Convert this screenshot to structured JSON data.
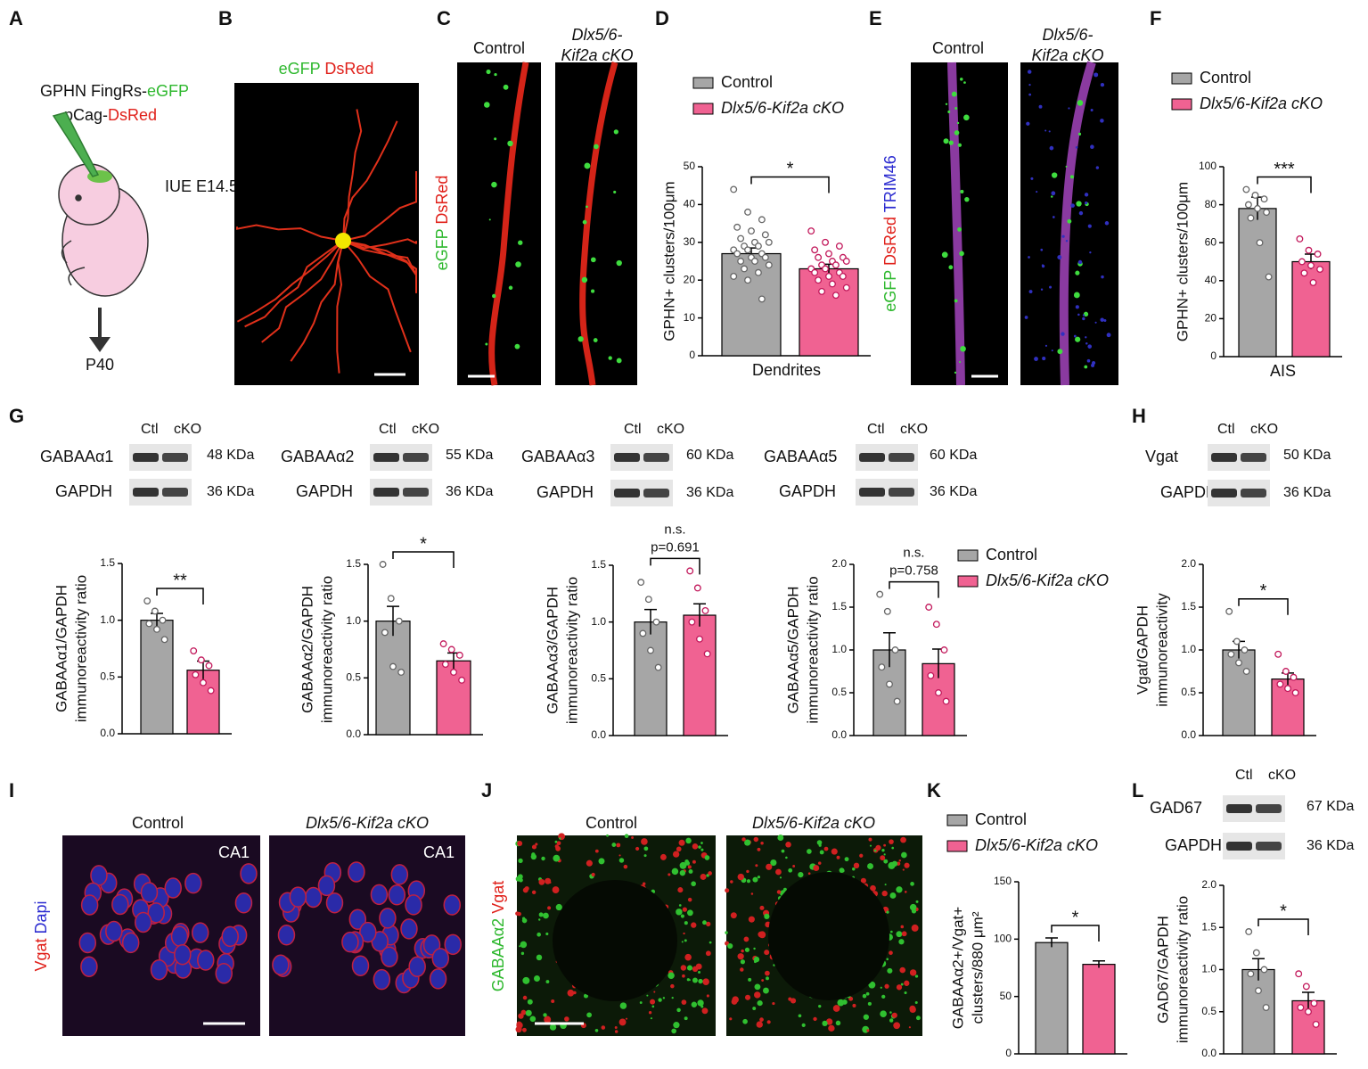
{
  "figure": {
    "letters": [
      "A",
      "B",
      "C",
      "D",
      "E",
      "F",
      "G",
      "H",
      "I",
      "J",
      "K",
      "L"
    ],
    "a": {
      "line1": [
        "GPHN FingRs-",
        "eGFP"
      ],
      "line2": [
        "pCag-",
        "DsRed"
      ],
      "iue": "IUE E14.5",
      "age": "P40"
    },
    "b": {
      "stain": [
        "eGFP",
        "DsRed"
      ]
    },
    "c": {
      "control": "Control",
      "cko": [
        "Dlx5/6-",
        "Kif2a cKO"
      ],
      "stain": [
        "eGFP",
        "DsRed"
      ]
    },
    "e": {
      "control": "Control",
      "cko": [
        "Dlx5/6-",
        "Kif2a cKO"
      ],
      "stain": [
        "eGFP",
        "DsRed",
        "TRIM46"
      ]
    },
    "blots": [
      {
        "ctl": "Ctl",
        "cko": "cKO",
        "target": "GABAAα1",
        "target_kda": "48 KDa",
        "ref": "GAPDH",
        "ref_kda": "36 KDa"
      },
      {
        "ctl": "Ctl",
        "cko": "cKO",
        "target": "GABAAα2",
        "target_kda": "55 KDa",
        "ref": "GAPDH",
        "ref_kda": "36 KDa"
      },
      {
        "ctl": "Ctl",
        "cko": "cKO",
        "target": "GABAAα3",
        "target_kda": "60 KDa",
        "ref": "GAPDH",
        "ref_kda": "36 KDa"
      },
      {
        "ctl": "Ctl",
        "cko": "cKO",
        "target": "GABAAα5",
        "target_kda": "60 KDa",
        "ref": "GAPDH",
        "ref_kda": "36 KDa"
      },
      {
        "ctl": "Ctl",
        "cko": "cKO",
        "target": "Vgat",
        "target_kda": "50 KDa",
        "ref": "GAPDH",
        "ref_kda": "36 KDa"
      },
      {
        "ctl": "Ctl",
        "cko": "cKO",
        "target": "GAD67",
        "target_kda": "67 KDa",
        "ref": "GAPDH",
        "ref_kda": "36 KDa"
      }
    ],
    "i": {
      "control": "Control",
      "cko": "Dlx5/6-Kif2a cKO",
      "region": "CA1",
      "stain": [
        "Vgat",
        "Dapi"
      ]
    },
    "j": {
      "control": "Control",
      "cko": "Dlx5/6-Kif2a cKO",
      "stain": [
        "GABAAα2",
        "Vgat"
      ]
    }
  },
  "chart_data": [
    {
      "type": "bar",
      "ylabel": [
        "GPHN+ clusters/100μm"
      ],
      "xlabel": "Dendrites",
      "ylim": [
        0,
        50
      ],
      "yticks": [
        0,
        10,
        20,
        30,
        40,
        50
      ],
      "significance": "*",
      "series": [
        {
          "name": "Control",
          "color": "#a6a6a6",
          "values": [
            27
          ],
          "errors": [
            1.5
          ],
          "points": [
            44,
            38,
            36,
            34,
            33,
            32,
            31,
            30,
            30,
            29,
            29,
            28,
            28,
            27,
            27,
            26,
            26,
            25,
            25,
            24,
            23,
            22,
            21,
            20,
            15
          ]
        },
        {
          "name": "Dlx5/6-Kif2a cKO",
          "color": "#f06292",
          "values": [
            23
          ],
          "errors": [
            1.2
          ],
          "points": [
            33,
            30,
            29,
            28,
            27,
            26,
            26,
            25,
            25,
            24,
            24,
            23,
            23,
            22,
            22,
            21,
            21,
            20,
            19,
            18,
            17,
            16
          ]
        }
      ]
    },
    {
      "type": "bar",
      "ylabel": [
        "GPHN+ clusters/100μm"
      ],
      "xlabel": "AIS",
      "ylim": [
        0,
        100
      ],
      "yticks": [
        0,
        20,
        40,
        60,
        80,
        100
      ],
      "significance": "***",
      "series": [
        {
          "name": "Control",
          "color": "#a6a6a6",
          "values": [
            78
          ],
          "errors": [
            6
          ],
          "points": [
            88,
            85,
            83,
            80,
            78,
            76,
            73,
            60,
            42
          ]
        },
        {
          "name": "Dlx5/6-Kif2a cKO",
          "color": "#f06292",
          "values": [
            50
          ],
          "errors": [
            4
          ],
          "points": [
            62,
            56,
            54,
            50,
            48,
            46,
            44,
            39
          ]
        }
      ]
    },
    {
      "type": "bar",
      "ylabel": [
        "GABAAα1/GAPDH",
        "immunoreactivity ratio"
      ],
      "ylim": [
        0,
        1.5
      ],
      "yticks": [
        {
          "value": 0,
          "label": "0.0"
        },
        0.5,
        {
          "value": 1,
          "label": "1.0"
        },
        1.5
      ],
      "significance": "**",
      "series": [
        {
          "color": "#a6a6a6",
          "values": [
            1.0
          ],
          "errors": [
            0.06
          ],
          "points": [
            1.17,
            1.08,
            1.0,
            0.97,
            0.92,
            0.83
          ]
        },
        {
          "color": "#f06292",
          "values": [
            0.56
          ],
          "errors": [
            0.08
          ],
          "points": [
            0.73,
            0.65,
            0.6,
            0.52,
            0.45,
            0.38
          ]
        }
      ]
    },
    {
      "type": "bar",
      "ylabel": [
        "GABAAα2/GAPDH",
        "immunoreactivity ratio"
      ],
      "ylim": [
        0,
        1.5
      ],
      "yticks": [
        {
          "value": 0,
          "label": "0.0"
        },
        0.5,
        {
          "value": 1,
          "label": "1.0"
        },
        1.5
      ],
      "significance": "*",
      "series": [
        {
          "color": "#a6a6a6",
          "values": [
            1.0
          ],
          "errors": [
            0.13
          ],
          "points": [
            1.5,
            1.2,
            1.0,
            0.9,
            0.6,
            0.55
          ]
        },
        {
          "color": "#f06292",
          "values": [
            0.65
          ],
          "errors": [
            0.07
          ],
          "points": [
            0.8,
            0.75,
            0.7,
            0.62,
            0.55,
            0.48
          ]
        }
      ]
    },
    {
      "type": "bar",
      "ylabel": [
        "GABAAα3/GAPDH",
        "immunoreactivity ratio"
      ],
      "ylim": [
        0,
        1.5
      ],
      "yticks": [
        {
          "value": 0,
          "label": "0.0"
        },
        0.5,
        {
          "value": 1,
          "label": "1.0"
        },
        1.5
      ],
      "significance": "n.s.",
      "pvalue": "p=0.691",
      "series": [
        {
          "color": "#a6a6a6",
          "values": [
            1.0
          ],
          "errors": [
            0.11
          ],
          "points": [
            1.35,
            1.2,
            1.0,
            0.9,
            0.75,
            0.6
          ]
        },
        {
          "color": "#f06292",
          "values": [
            1.06
          ],
          "errors": [
            0.1
          ],
          "points": [
            1.45,
            1.3,
            1.1,
            1.0,
            0.85,
            0.72
          ]
        }
      ]
    },
    {
      "type": "bar",
      "ylabel": [
        "GABAAα5/GAPDH",
        "immunoreactivity ratio"
      ],
      "ylim": [
        0,
        2
      ],
      "yticks": [
        {
          "value": 0,
          "label": "0.0"
        },
        0.5,
        {
          "value": 1,
          "label": "1.0"
        },
        1.5,
        {
          "value": 2,
          "label": "2.0"
        }
      ],
      "significance": "n.s.",
      "pvalue": "p=0.758",
      "series": [
        {
          "name": "Control",
          "color": "#a6a6a6",
          "values": [
            1.0
          ],
          "errors": [
            0.2
          ],
          "points": [
            1.65,
            1.45,
            1.0,
            0.8,
            0.6,
            0.4
          ]
        },
        {
          "name": "Dlx5/6-Kif2a cKO",
          "color": "#f06292",
          "values": [
            0.84
          ],
          "errors": [
            0.17
          ],
          "points": [
            1.5,
            1.3,
            1.0,
            0.7,
            0.5,
            0.4
          ]
        }
      ]
    },
    {
      "type": "bar",
      "ylabel": [
        "Vgat/GAPDH",
        "immunoreactivity"
      ],
      "ylim": [
        0,
        2
      ],
      "yticks": [
        {
          "value": 0,
          "label": "0.0"
        },
        0.5,
        {
          "value": 1,
          "label": "1.0"
        },
        1.5,
        {
          "value": 2,
          "label": "2.0"
        }
      ],
      "significance": "*",
      "series": [
        {
          "color": "#a6a6a6",
          "values": [
            1.0
          ],
          "errors": [
            0.1
          ],
          "points": [
            1.45,
            1.1,
            1.0,
            0.95,
            0.85,
            0.75
          ]
        },
        {
          "color": "#f06292",
          "values": [
            0.66
          ],
          "errors": [
            0.07
          ],
          "points": [
            0.95,
            0.75,
            0.68,
            0.6,
            0.55,
            0.5
          ]
        }
      ]
    },
    {
      "type": "bar",
      "ylabel": [
        "GABAAα2+/Vgat+",
        "clusters/880 μm²"
      ],
      "ylim": [
        0,
        150
      ],
      "yticks": [
        0,
        50,
        100,
        150
      ],
      "significance": "*",
      "series": [
        {
          "name": "Control",
          "color": "#a6a6a6",
          "values": [
            97
          ],
          "errors": [
            4
          ]
        },
        {
          "name": "Dlx5/6-Kif2a cKO",
          "color": "#f06292",
          "values": [
            78
          ],
          "errors": [
            3
          ]
        }
      ]
    },
    {
      "type": "bar",
      "ylabel": [
        "GAD67/GAPDH",
        "immunoreactivity ratio"
      ],
      "ylim": [
        0,
        2
      ],
      "yticks": [
        {
          "value": 0,
          "label": "0.0"
        },
        0.5,
        {
          "value": 1,
          "label": "1.0"
        },
        1.5,
        {
          "value": 2,
          "label": "2.0"
        }
      ],
      "significance": "*",
      "series": [
        {
          "color": "#a6a6a6",
          "values": [
            1.0
          ],
          "errors": [
            0.13
          ],
          "points": [
            1.45,
            1.2,
            1.0,
            0.95,
            0.75,
            0.55
          ]
        },
        {
          "color": "#f06292",
          "values": [
            0.63
          ],
          "errors": [
            0.1
          ],
          "points": [
            0.95,
            0.8,
            0.6,
            0.55,
            0.5,
            0.35
          ]
        }
      ]
    }
  ]
}
